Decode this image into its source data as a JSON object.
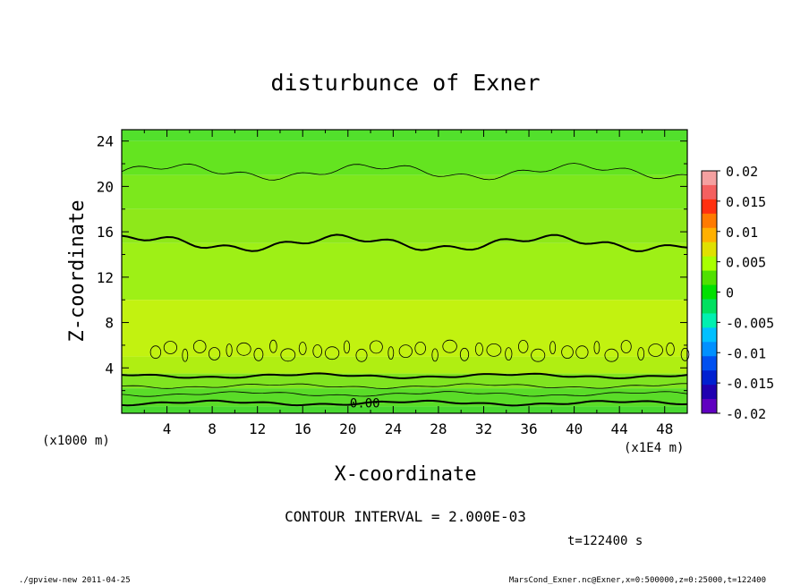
{
  "chart_data": {
    "type": "heatmap",
    "title": "disturbunce of Exner",
    "xlabel": "X-coordinate",
    "ylabel": "Z-coordinate",
    "x_unit": "(x1E4 m)",
    "y_unit": "(x1000 m)",
    "xlim": [
      0,
      50
    ],
    "ylim": [
      0,
      25
    ],
    "x_ticks": [
      "4",
      "8",
      "12",
      "16",
      "20",
      "24",
      "28",
      "32",
      "36",
      "40",
      "44",
      "48"
    ],
    "y_ticks": [
      "4",
      "8",
      "12",
      "16",
      "20",
      "24"
    ],
    "colorbar": {
      "ticks": [
        "0.02",
        "0.015",
        "0.01",
        "0.005",
        "0",
        "-0.005",
        "-0.01",
        "-0.015",
        "-0.02"
      ],
      "colors": [
        "#f4a0a0",
        "#f46060",
        "#ff3010",
        "#ff7a00",
        "#ffb000",
        "#e0e000",
        "#a8ff00",
        "#50e000",
        "#00e000",
        "#00e060",
        "#00f0b0",
        "#00c0ff",
        "#0090ff",
        "#0050f0",
        "#0020d0",
        "#2000b0",
        "#6000c0"
      ]
    },
    "layers": [
      {
        "z": [
          24,
          25
        ],
        "color": "#52e02c"
      },
      {
        "z": [
          21,
          24
        ],
        "color": "#64e420"
      },
      {
        "z": [
          18,
          21
        ],
        "color": "#7ce81c"
      },
      {
        "z": [
          15,
          18
        ],
        "color": "#8ee81a"
      },
      {
        "z": [
          10,
          15
        ],
        "color": "#9ef016"
      },
      {
        "z": [
          5,
          10
        ],
        "color": "#c2f210"
      },
      {
        "z": [
          3.5,
          5
        ],
        "color": "#b0ee12"
      },
      {
        "z": [
          2.2,
          3.5
        ],
        "color": "#80e420"
      },
      {
        "z": [
          0.6,
          2.2
        ],
        "color": "#5adc28"
      },
      {
        "z": [
          0,
          0.6
        ],
        "color": "#48d830"
      }
    ],
    "contours": [
      {
        "z": 21.3,
        "weight": "thin"
      },
      {
        "z": 15,
        "weight": "thick"
      },
      {
        "z": 3.3,
        "weight": "thick"
      },
      {
        "z": 2.4,
        "weight": "thin"
      },
      {
        "z": 1.7,
        "weight": "thin"
      },
      {
        "z": 0.9,
        "weight": "thick",
        "label": "0.00"
      }
    ],
    "contour_interval_label": "CONTOUR INTERVAL = 2.000E-03",
    "time_label": "t=122400 s"
  },
  "footer": {
    "left": "./gpview-new   2011-04-25",
    "right": "MarsCond_Exner.nc@Exner,x=0:500000,z=0:25000,t=122400"
  }
}
